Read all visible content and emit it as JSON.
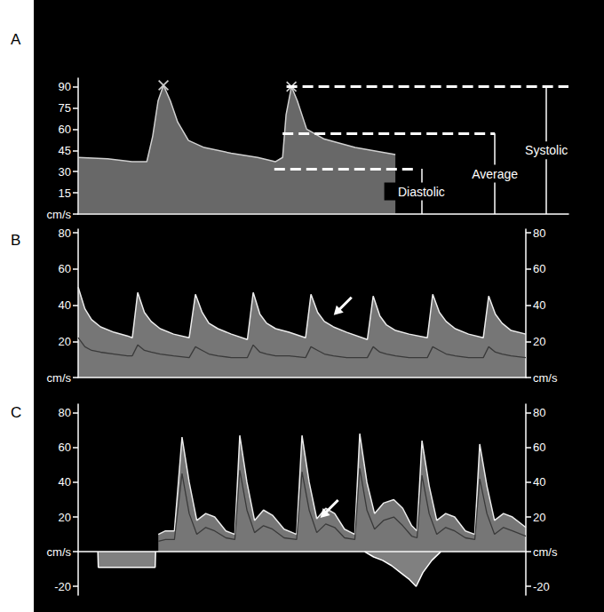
{
  "chart_data": [
    {
      "panel": "A",
      "type": "line",
      "grid": false,
      "tick_labels": "y",
      "xlim": [
        0,
        100
      ],
      "ylim": [
        0,
        96
      ],
      "yticks": [
        {
          "value": 0,
          "label": "cm/s"
        },
        15,
        30,
        45,
        60,
        75,
        90
      ],
      "x": [
        0,
        6,
        11,
        14,
        15.2,
        16.3,
        17.4,
        18.8,
        20.3,
        22.5,
        25.7,
        31.2,
        36.6,
        40.2,
        41.7,
        42.4,
        43.5,
        44.7,
        46.6,
        50.2,
        56.5,
        64.7
      ],
      "series": [
        {
          "type": "area",
          "color": "#d0d0d0",
          "values": [
            40,
            39,
            37,
            37,
            55,
            80,
            91,
            80,
            65,
            52,
            47,
            43,
            40,
            37,
            40,
            70,
            90,
            80,
            60,
            53,
            47,
            42
          ]
        },
        {
          "type": "scatter",
          "marker": "x",
          "color": "#ffffff",
          "x": [
            17.4,
            43.5
          ],
          "values": [
            91,
            90
          ]
        }
      ],
      "reference_lines": [
        {
          "label": "Systolic",
          "value": 90
        },
        {
          "label": "Average",
          "value": 57
        },
        {
          "label": "Diastolic",
          "value": 32
        }
      ]
    },
    {
      "panel": "B",
      "type": "line",
      "grid": false,
      "tick_labels": "y",
      "xlim": [
        0,
        100
      ],
      "ylim": [
        0,
        82
      ],
      "yticks": [
        {
          "value": 0,
          "label": "cm/s"
        },
        20,
        40,
        60,
        80
      ],
      "y2lim": [
        0,
        82
      ],
      "y2ticks": [
        {
          "value": 0,
          "label": "cm/s"
        },
        20,
        40,
        60,
        80
      ],
      "x": [
        0,
        1.5,
        3,
        5,
        8,
        11,
        12.1,
        13.3,
        14.8,
        16.3,
        18.3,
        21.3,
        24.8,
        26.2,
        27.7,
        29.2,
        31.2,
        34.2,
        37.8,
        39.1,
        40.6,
        42.1,
        44.1,
        47.1,
        50.8,
        52,
        53.5,
        55,
        57,
        60,
        64.6,
        65.9,
        67.4,
        68.9,
        70.9,
        73.9,
        78,
        79.2,
        80.7,
        82.2,
        84.2,
        87.2,
        90.5,
        91.7,
        93.2,
        94.7,
        96.7,
        100
      ],
      "series": [
        {
          "type": "area",
          "color": "#ececec",
          "values": [
            50,
            38,
            32,
            28,
            25,
            23,
            22,
            47,
            36,
            31,
            27,
            24,
            22,
            46,
            36,
            30,
            27,
            24,
            21,
            47,
            35,
            30,
            27,
            25,
            22,
            46,
            36,
            31,
            28,
            25,
            21,
            45,
            34,
            29,
            26,
            24,
            22,
            46,
            36,
            31,
            27,
            24,
            22,
            45,
            35,
            30,
            26,
            24
          ]
        },
        {
          "type": "line",
          "color": "#3a3a3a",
          "values": [
            22,
            17,
            15,
            14,
            13,
            12,
            12,
            18,
            15,
            14,
            13,
            12,
            11,
            17,
            15,
            13,
            12,
            11,
            11,
            18,
            14,
            13,
            12,
            12,
            11,
            17,
            15,
            13,
            12,
            11,
            11,
            17,
            14,
            13,
            12,
            11,
            11,
            17,
            15,
            13,
            12,
            11,
            11,
            17,
            14,
            13,
            12,
            11
          ]
        }
      ],
      "arrow": [
        56.5,
        33
      ]
    },
    {
      "panel": "C",
      "type": "line",
      "grid": false,
      "tick_labels": "y",
      "xlim": [
        0,
        100
      ],
      "ylim": [
        -25,
        85
      ],
      "yticks": [
        -20,
        {
          "value": 0,
          "label": "cm/s"
        },
        20,
        40,
        60,
        80
      ],
      "y2lim": [
        -25,
        85
      ],
      "y2ticks": [
        -20,
        {
          "value": 0,
          "label": "cm/s"
        },
        20,
        40,
        60,
        80
      ],
      "x": [
        17.9,
        19.5,
        21.5,
        23.2,
        24.8,
        26.5,
        28.5,
        30.5,
        33,
        35,
        36.1,
        37.7,
        39.4,
        41.4,
        43.4,
        46,
        48.8,
        50,
        51.6,
        53.3,
        55.3,
        57.3,
        59.5,
        61.8,
        62.9,
        64.5,
        66.2,
        68.2,
        70.5,
        72.5,
        74.5,
        75.7,
        76.8,
        78.4,
        80.1,
        82.1,
        84.1,
        86.5,
        88.6,
        89.7,
        91.3,
        93,
        95,
        97,
        100
      ],
      "series": [
        {
          "type": "area",
          "color": "#ececec",
          "values": [
            10,
            12,
            12,
            66,
            40,
            18,
            22,
            20,
            12,
            10,
            67,
            40,
            18,
            24,
            21,
            13,
            10,
            67,
            40,
            19,
            25,
            22,
            13,
            10,
            68,
            40,
            22,
            28,
            30,
            25,
            15,
            12,
            64,
            38,
            18,
            22,
            20,
            12,
            10,
            62,
            38,
            18,
            22,
            20,
            14
          ]
        },
        {
          "type": "line",
          "color": "#3a3a3a",
          "values": [
            6,
            7,
            7,
            45,
            22,
            10,
            14,
            12,
            8,
            7,
            47,
            24,
            11,
            15,
            13,
            8,
            7,
            46,
            24,
            11,
            16,
            14,
            8,
            7,
            48,
            24,
            13,
            18,
            20,
            15,
            9,
            8,
            44,
            22,
            10,
            14,
            12,
            8,
            7,
            42,
            22,
            10,
            14,
            12,
            9
          ]
        },
        {
          "type": "area",
          "color": "#ffffff",
          "x": [
            4.4,
            4.5,
            17.2,
            17.3,
            40,
            64,
            66,
            68,
            70,
            72,
            74,
            75.5,
            77,
            79,
            81
          ],
          "values": [
            0,
            -9,
            -9,
            0,
            null,
            0,
            -3,
            -5,
            -8,
            -12,
            -16,
            -20,
            -12,
            -5,
            0
          ]
        }
      ],
      "arrow": [
        53.5,
        18
      ]
    }
  ]
}
